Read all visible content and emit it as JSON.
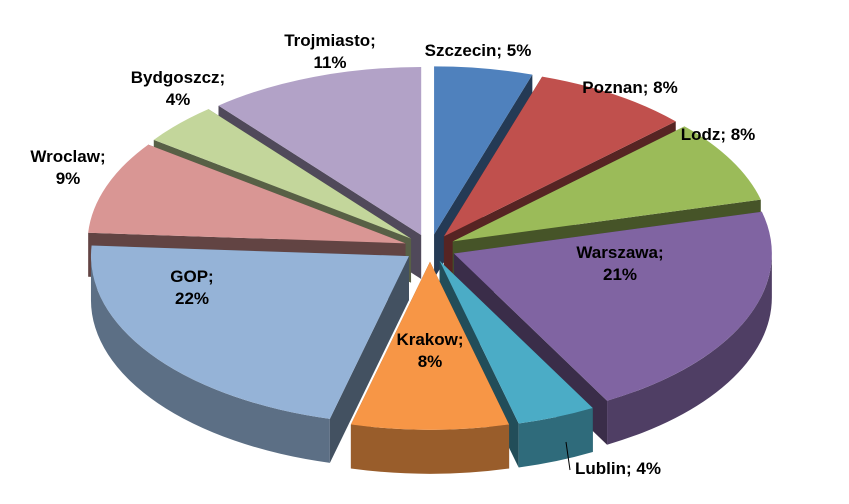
{
  "chart_data": {
    "type": "pie",
    "variant": "exploded-3d",
    "separator": "; ",
    "slices": [
      {
        "name": "Szczecin",
        "value": 5,
        "label": "5%",
        "color": "#4F81BD"
      },
      {
        "name": "Poznan",
        "value": 8,
        "label": "8%",
        "color": "#C0504D"
      },
      {
        "name": "Lodz",
        "value": 8,
        "label": "8%",
        "color": "#9BBB59"
      },
      {
        "name": "Warszawa",
        "value": 21,
        "label": "21%",
        "color": "#8064A2"
      },
      {
        "name": "Lublin",
        "value": 4,
        "label": "4%",
        "color": "#4BACC6"
      },
      {
        "name": "Krakow",
        "value": 8,
        "label": "8%",
        "color": "#F79646"
      },
      {
        "name": "GOP",
        "value": 22,
        "label": "22%",
        "color": "#95B3D7"
      },
      {
        "name": "Wroclaw",
        "value": 9,
        "label": "9%",
        "color": "#D99694"
      },
      {
        "name": "Bydgoszcz",
        "value": 4,
        "label": "4%",
        "color": "#C3D69B"
      },
      {
        "name": "Trojmiasto",
        "value": 11,
        "label": "11%",
        "color": "#B2A2C7"
      }
    ]
  }
}
